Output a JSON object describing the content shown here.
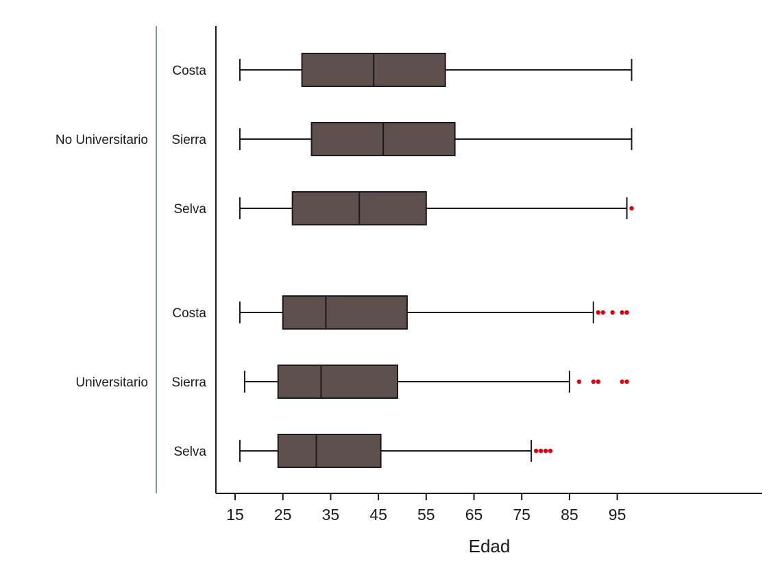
{
  "chart_data": {
    "type": "boxplot",
    "orientation": "horizontal",
    "xlabel": "Edad",
    "xlim": [
      11.5,
      101
    ],
    "x_ticks": [
      15,
      25,
      35,
      45,
      55,
      65,
      75,
      85,
      95
    ],
    "colors": {
      "box_fill": "#5e504c",
      "outlier": "#e0000f",
      "axis": "#1a1a1a",
      "group_line": "#7f9a9a"
    },
    "groups": [
      {
        "name": "No Universitario",
        "boxes": [
          {
            "label": "Costa",
            "whisker_low": 16,
            "q1": 29,
            "median": 44,
            "q3": 59,
            "whisker_high": 98,
            "outliers": []
          },
          {
            "label": "Sierra",
            "whisker_low": 16,
            "q1": 31,
            "median": 46,
            "q3": 61,
            "whisker_high": 98,
            "outliers": []
          },
          {
            "label": "Selva",
            "whisker_low": 16,
            "q1": 27,
            "median": 41,
            "q3": 55,
            "whisker_high": 97,
            "outliers": [
              98
            ]
          }
        ]
      },
      {
        "name": "Universitario",
        "boxes": [
          {
            "label": "Costa",
            "whisker_low": 16,
            "q1": 25,
            "median": 34,
            "q3": 51,
            "whisker_high": 90,
            "outliers": [
              91,
              92,
              94,
              96,
              97
            ]
          },
          {
            "label": "Sierra",
            "whisker_low": 17,
            "q1": 24,
            "median": 33,
            "q3": 49,
            "whisker_high": 85,
            "outliers": [
              87,
              90,
              91,
              96,
              97
            ]
          },
          {
            "label": "Selva",
            "whisker_low": 16,
            "q1": 24,
            "median": 32,
            "q3": 45.5,
            "whisker_high": 77,
            "outliers": [
              78,
              79,
              80,
              81
            ]
          }
        ]
      }
    ]
  }
}
